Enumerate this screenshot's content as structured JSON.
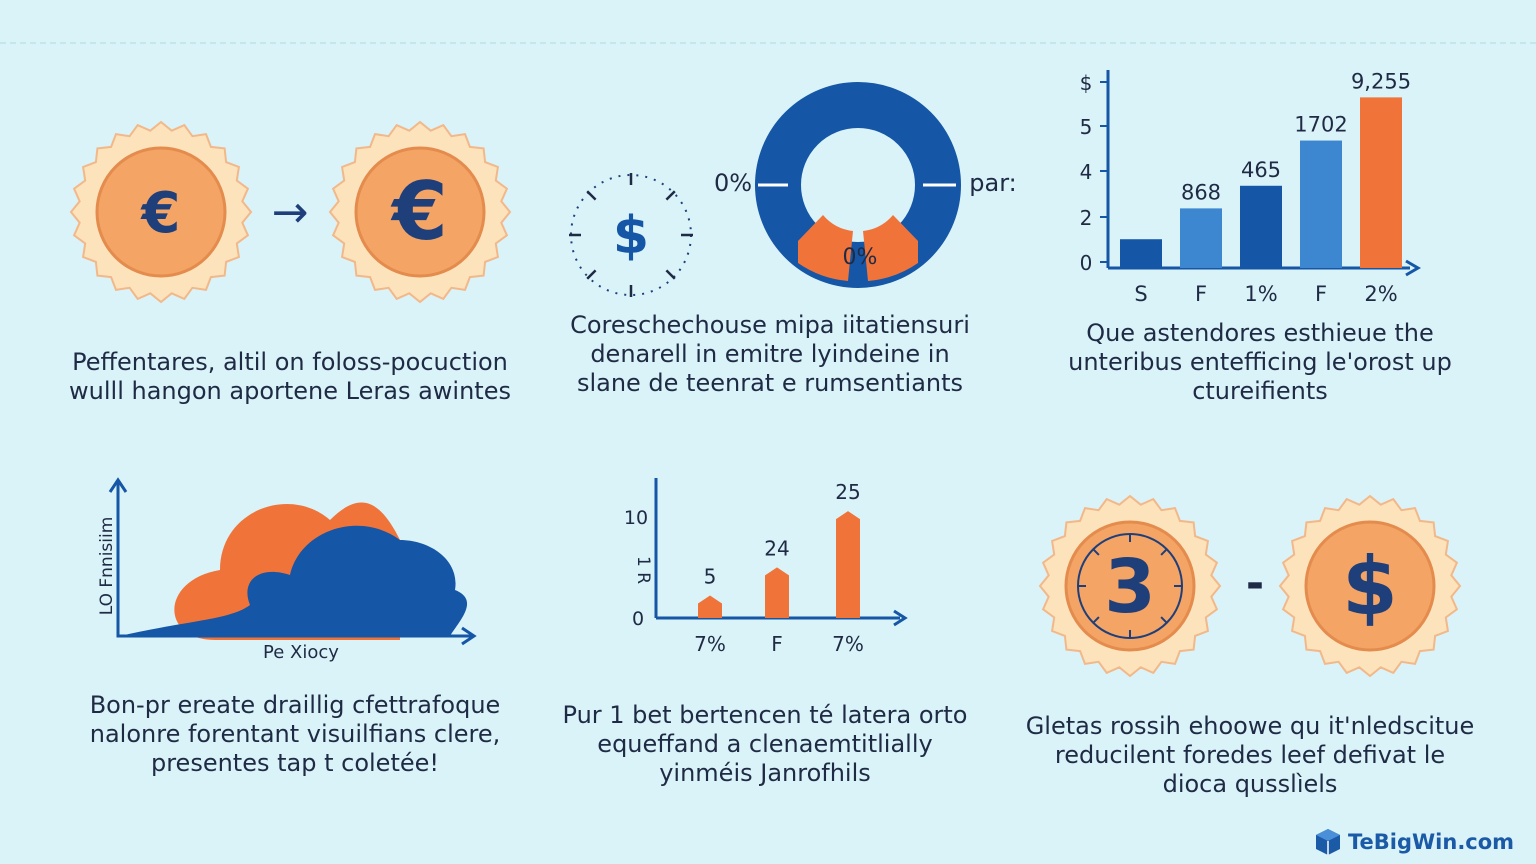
{
  "colors": {
    "background": "#d9f3f8",
    "navy": "#1f3f7a",
    "blue": "#1556a6",
    "light_blue": "#3d86d0",
    "orange": "#f0743a",
    "coin_edge": "#fde3bb",
    "coin_inner": "#f4a465"
  },
  "panel1": {
    "coin_left_symbol": "€",
    "arrow_symbol": "→",
    "coin_right_symbol": "€",
    "caption": [
      "Peffentares, altil on foloss-pocuction",
      "wulll hangon aportene Leras awintes"
    ]
  },
  "panel2": {
    "dial_symbol": "$",
    "label_left": "0%",
    "label_right": "par:",
    "label_bottom": "0%",
    "caption": [
      "Coreschechouse mipa iitatiensuri",
      "denarell in emitre lyindeine in",
      "slane de teenrat e rumsentiants"
    ]
  },
  "panel3": {
    "chart_data": {
      "type": "bar",
      "y_tick_labels": [
        "$",
        "5",
        "4",
        "2",
        "0"
      ],
      "categories": [
        "S",
        "F",
        "1%",
        "F",
        "2%"
      ],
      "data_labels": [
        "",
        "868",
        "465",
        "1702",
        "9,255"
      ],
      "values": [
        0.7,
        1.45,
        2.0,
        3.1,
        4.15
      ],
      "ylim": [
        0,
        4.5
      ],
      "bar_colors": [
        "#1556a6",
        "#3d86d0",
        "#1556a6",
        "#3d86d0",
        "#f0743a"
      ]
    },
    "caption": [
      "Que astendores esthieue the",
      "unteribus entefficing le'orost up",
      "ctureifients"
    ]
  },
  "panel4": {
    "ylabel": "LO Fnnisiim",
    "xlabel": "Pe Xiocy",
    "caption": [
      "Bon-pr ereate draillig cfettrafoque",
      "nalonre forentant visuilfians clere,",
      "presentes tap t coletée!"
    ]
  },
  "panel5": {
    "chart_data": {
      "type": "bar",
      "y_tick_labels": [
        "10",
        "0"
      ],
      "ylabel": "1 R",
      "categories": [
        "7%",
        "F",
        "7%"
      ],
      "data_labels": [
        "5",
        "24",
        "25"
      ],
      "values": [
        2,
        4.5,
        9.5
      ],
      "ylim": [
        0,
        12
      ]
    },
    "caption": [
      "Pur 1 bet bertencen té latera orto",
      "equeffand a clenaemtitlially",
      "yinméis Janrofhils"
    ]
  },
  "panel6": {
    "coin_left_symbol": "3",
    "separator": "-",
    "coin_right_symbol": "$",
    "caption": [
      "Gletas rossih ehoowe qu it'nledscitue",
      "reducilent foredes leef defivat le",
      "dioca qusslìels"
    ]
  },
  "brand": {
    "name": "TeBigWin.com"
  }
}
